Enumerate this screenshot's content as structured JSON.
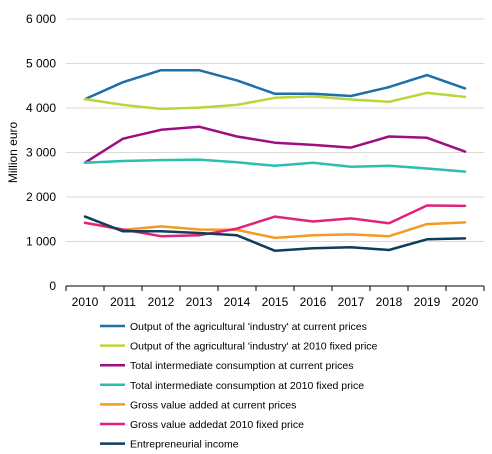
{
  "chart_data": {
    "type": "line",
    "ylabel": "Million euro",
    "xlabel": "",
    "ylim": [
      0,
      6000
    ],
    "yticks": [
      0,
      1000,
      2000,
      3000,
      4000,
      5000,
      6000
    ],
    "ytick_labels": [
      "0",
      "1 000",
      "2 000",
      "3 000",
      "4 000",
      "5 000",
      "6 000"
    ],
    "categories": [
      "2010",
      "2011",
      "2012",
      "2013",
      "2014",
      "2015",
      "2016",
      "2017",
      "2018",
      "2019",
      "2020"
    ],
    "grid": "horizontal",
    "legend_position": "bottom",
    "series": [
      {
        "name": "Output of the agricultural 'industry' at current prices",
        "color": "#1f6ea8",
        "values": [
          4200,
          4580,
          4850,
          4850,
          4620,
          4320,
          4320,
          4270,
          4470,
          4740,
          4440
        ]
      },
      {
        "name": "Output of the agricultural 'industry' at 2010 fixed price",
        "color": "#b9d63a",
        "values": [
          4200,
          4070,
          3980,
          4010,
          4070,
          4230,
          4260,
          4190,
          4140,
          4340,
          4250
        ]
      },
      {
        "name": "Total intermediate consumption  at current prices",
        "color": "#9c0f80",
        "values": [
          2770,
          3310,
          3510,
          3580,
          3360,
          3220,
          3170,
          3110,
          3360,
          3330,
          3020
        ]
      },
      {
        "name": "Total intermediate consumption at 2010 fixed price",
        "color": "#2bbfb0",
        "values": [
          2770,
          2810,
          2830,
          2840,
          2780,
          2700,
          2770,
          2680,
          2700,
          2640,
          2570
        ]
      },
      {
        "name": "Gross value added at current prices",
        "color": "#f39a24",
        "values": [
          1420,
          1260,
          1340,
          1270,
          1260,
          1080,
          1140,
          1160,
          1120,
          1390,
          1430
        ]
      },
      {
        "name": "Gross value addedat 2010 fixed price",
        "color": "#e2227a",
        "values": [
          1420,
          1270,
          1120,
          1140,
          1290,
          1560,
          1450,
          1520,
          1410,
          1810,
          1800
        ]
      },
      {
        "name": "Entrepreneurial income",
        "color": "#0f3d5c",
        "values": [
          1560,
          1230,
          1230,
          1190,
          1140,
          790,
          850,
          870,
          810,
          1050,
          1070
        ]
      }
    ]
  }
}
